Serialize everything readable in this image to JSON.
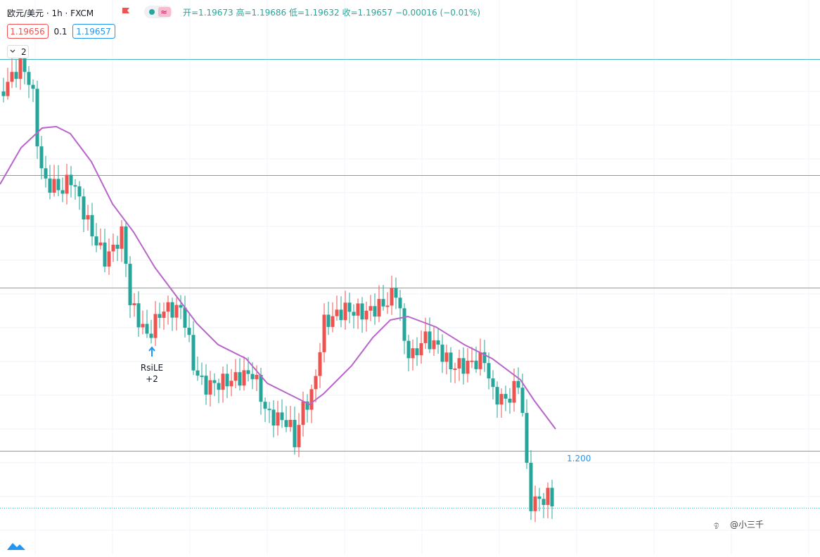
{
  "header": {
    "symbol": "欧元/美元 · 1h · FXCM",
    "ohlc": "开=1.19673 高=1.19686 低=1.19632 收=1.19657 −0.00016 (−0.01%)",
    "bid": "1.19656",
    "spread": "0.1",
    "ask": "1.19657",
    "collapse": "2"
  },
  "signal": {
    "name": "RsiLE",
    "qty": "+2"
  },
  "level_label": "1.200",
  "watermark": "@小三千"
}
